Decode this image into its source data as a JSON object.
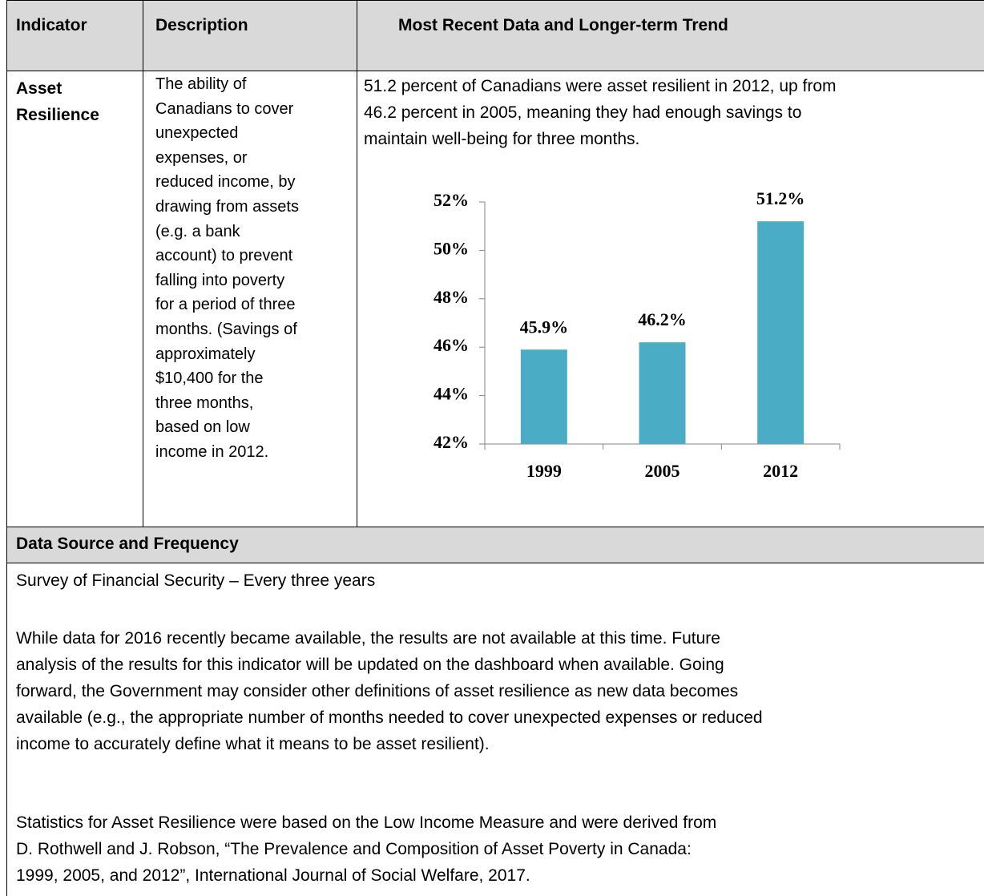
{
  "table": {
    "headers": [
      "Indicator",
      "Description",
      "Most Recent Data and Longer-term Trend"
    ],
    "indicator": "Asset Resilience",
    "description_lines": [
      "The ability of",
      "Canadians to cover",
      "unexpected",
      "expenses, or",
      "reduced income, by",
      "drawing from assets",
      "(e.g. a bank",
      "account) to prevent",
      "falling into poverty",
      "for a period of three",
      "months. (Savings of",
      "approximately",
      "$10,400 for the",
      "three months,",
      "based on low",
      "income in 2012."
    ],
    "summary_lines": [
      "51.2 percent of Canadians were asset resilient in 2012, up from",
      "46.2 percent in 2005, meaning they had enough savings to",
      "maintain well-being for three months."
    ]
  },
  "chart_data": {
    "type": "bar",
    "categories": [
      "1999",
      "2005",
      "2012"
    ],
    "values": [
      45.9,
      46.2,
      51.2
    ],
    "value_labels": [
      "45.9%",
      "46.2%",
      "51.2%"
    ],
    "color": "#4bacc6",
    "ylim": [
      42,
      52
    ],
    "yticks": [
      {
        "value": 42,
        "label": "42%"
      },
      {
        "value": 44,
        "label": "44%"
      },
      {
        "value": 46,
        "label": "46%"
      },
      {
        "value": 48,
        "label": "48%"
      },
      {
        "value": 50,
        "label": "50%"
      },
      {
        "value": 52,
        "label": "52%"
      }
    ],
    "grid": false
  },
  "source": {
    "heading": "Data Source and Frequency",
    "frequency": "Survey of Financial Security – Every three years",
    "paragraph_lines": [
      "While data for 2016 recently became available, the results are not available at this time. Future",
      "analysis of the results for this indicator will be updated on the dashboard when available. Going",
      "forward, the Government may consider other definitions of asset resilience as new data becomes",
      "available (e.g., the appropriate number of months needed to cover unexpected expenses or reduced",
      "income to accurately define what it means to be asset resilient)."
    ],
    "citation_lines": [
      "Statistics for Asset Resilience were based on the Low Income Measure and were derived from",
      "D. Rothwell and J. Robson, “The Prevalence and Composition of Asset Poverty in Canada:",
      "1999, 2005, and 2012”, International Journal of Social Welfare, 2017."
    ]
  }
}
